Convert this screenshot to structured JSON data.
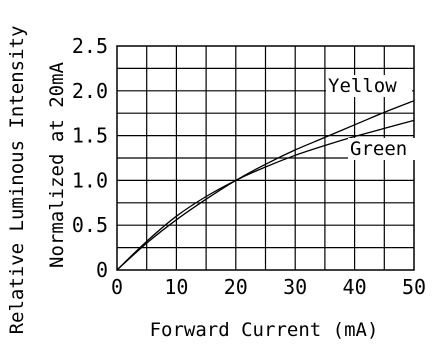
{
  "chart_data": {
    "type": "line",
    "title": "",
    "xlabel": "Forward Current (mA)",
    "ylabel_lines": [
      "Relative Luminous Intensity",
      "Normalized at 20mA"
    ],
    "xlim": [
      0,
      50
    ],
    "ylim": [
      0,
      2.5
    ],
    "x_ticks": [
      0,
      10,
      20,
      30,
      40,
      50
    ],
    "x_tick_labels": [
      "0",
      "10",
      "20",
      "30",
      "40",
      "50"
    ],
    "y_ticks": [
      0,
      0.5,
      1.0,
      1.5,
      2.0,
      2.5
    ],
    "y_tick_labels": [
      "0",
      "0.5",
      "1.0",
      "1.5",
      "2.0",
      "2.5"
    ],
    "grid": true,
    "series": [
      {
        "name": "Yellow",
        "x": [
          0,
          5,
          10,
          15,
          20,
          25,
          30,
          35,
          40,
          45,
          50
        ],
        "y": [
          0,
          0.3,
          0.56,
          0.79,
          1.0,
          1.18,
          1.34,
          1.48,
          1.62,
          1.76,
          1.89
        ]
      },
      {
        "name": "Green",
        "x": [
          0,
          5,
          10,
          15,
          20,
          25,
          30,
          35,
          40,
          45,
          50
        ],
        "y": [
          0,
          0.32,
          0.6,
          0.82,
          1.0,
          1.15,
          1.28,
          1.39,
          1.49,
          1.58,
          1.67
        ]
      }
    ]
  }
}
